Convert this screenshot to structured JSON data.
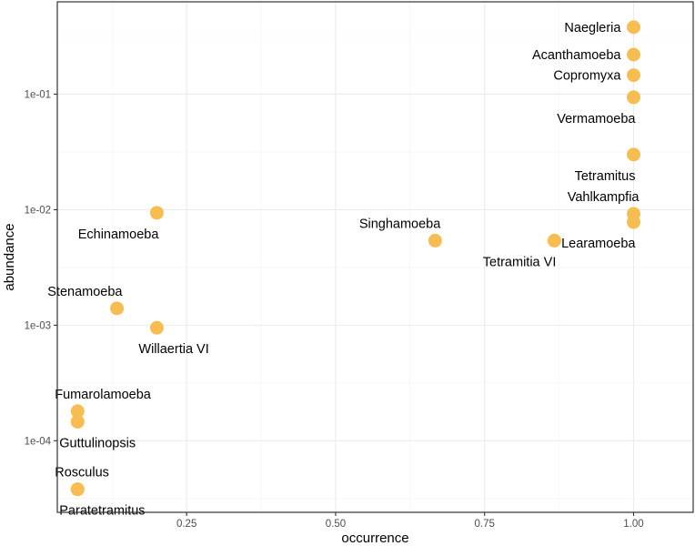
{
  "chart_data": {
    "type": "scatter",
    "xlabel": "occurrence",
    "ylabel": "abundance",
    "x_scale": "linear",
    "y_scale": "log10",
    "xlim": [
      0.033,
      1.1
    ],
    "ylim": [
      2.4e-05,
      0.63
    ],
    "x_ticks": [
      {
        "value": 0.25,
        "label": "0.25"
      },
      {
        "value": 0.5,
        "label": "0.50"
      },
      {
        "value": 0.75,
        "label": "0.75"
      },
      {
        "value": 1.0,
        "label": "1.00"
      }
    ],
    "y_ticks": [
      {
        "value": 0.1,
        "label": "1e-01"
      },
      {
        "value": 0.01,
        "label": "1e-02"
      },
      {
        "value": 0.001,
        "label": "1e-03"
      },
      {
        "value": 0.0001,
        "label": "1e-04"
      }
    ],
    "grid": true,
    "point_color": "#F8BD50",
    "points": [
      {
        "label": "Naegleria",
        "x": 1.0,
        "y": 0.38,
        "label_pos": "left"
      },
      {
        "label": "Acanthamoeba",
        "x": 1.0,
        "y": 0.22,
        "label_pos": "left"
      },
      {
        "label": "Copromyxa",
        "x": 1.0,
        "y": 0.146,
        "label_pos": "left"
      },
      {
        "label": "Vermamoeba",
        "x": 1.0,
        "y": 0.094,
        "label_pos": "below-left"
      },
      {
        "label": "Tetramitus",
        "x": 1.0,
        "y": 0.03,
        "label_pos": "below-left"
      },
      {
        "label": "Vahlkampfia",
        "x": 1.0,
        "y": 0.0092,
        "label_pos": "above-left"
      },
      {
        "label": "Learamoeba",
        "x": 1.0,
        "y": 0.0078,
        "label_pos": "below-left"
      },
      {
        "label": "Tetramitia VI",
        "x": 0.867,
        "y": 0.0054,
        "label_pos": "below-left"
      },
      {
        "label": "Singhamoeba",
        "x": 0.667,
        "y": 0.0054,
        "label_pos": "above-left"
      },
      {
        "label": "Echinamoeba",
        "x": 0.2,
        "y": 0.0094,
        "label_pos": "below-left"
      },
      {
        "label": "Stenamoeba",
        "x": 0.133,
        "y": 0.0014,
        "label_pos": "above-left"
      },
      {
        "label": "Willaertia VI",
        "x": 0.2,
        "y": 0.00095,
        "label_pos": "below-right"
      },
      {
        "label": "Fumarolamoeba",
        "x": 0.067,
        "y": 0.00018,
        "label_pos": "above-right"
      },
      {
        "label": "Guttulinopsis",
        "x": 0.067,
        "y": 0.000146,
        "label_pos": "below-right"
      },
      {
        "label": "Rosculus",
        "x": 0.067,
        "y": 3.8e-05,
        "label_pos": "above-right"
      },
      {
        "label": "Paratetramitus",
        "x": 0.067,
        "y": 3.8e-05,
        "label_pos": "below-right"
      }
    ]
  }
}
